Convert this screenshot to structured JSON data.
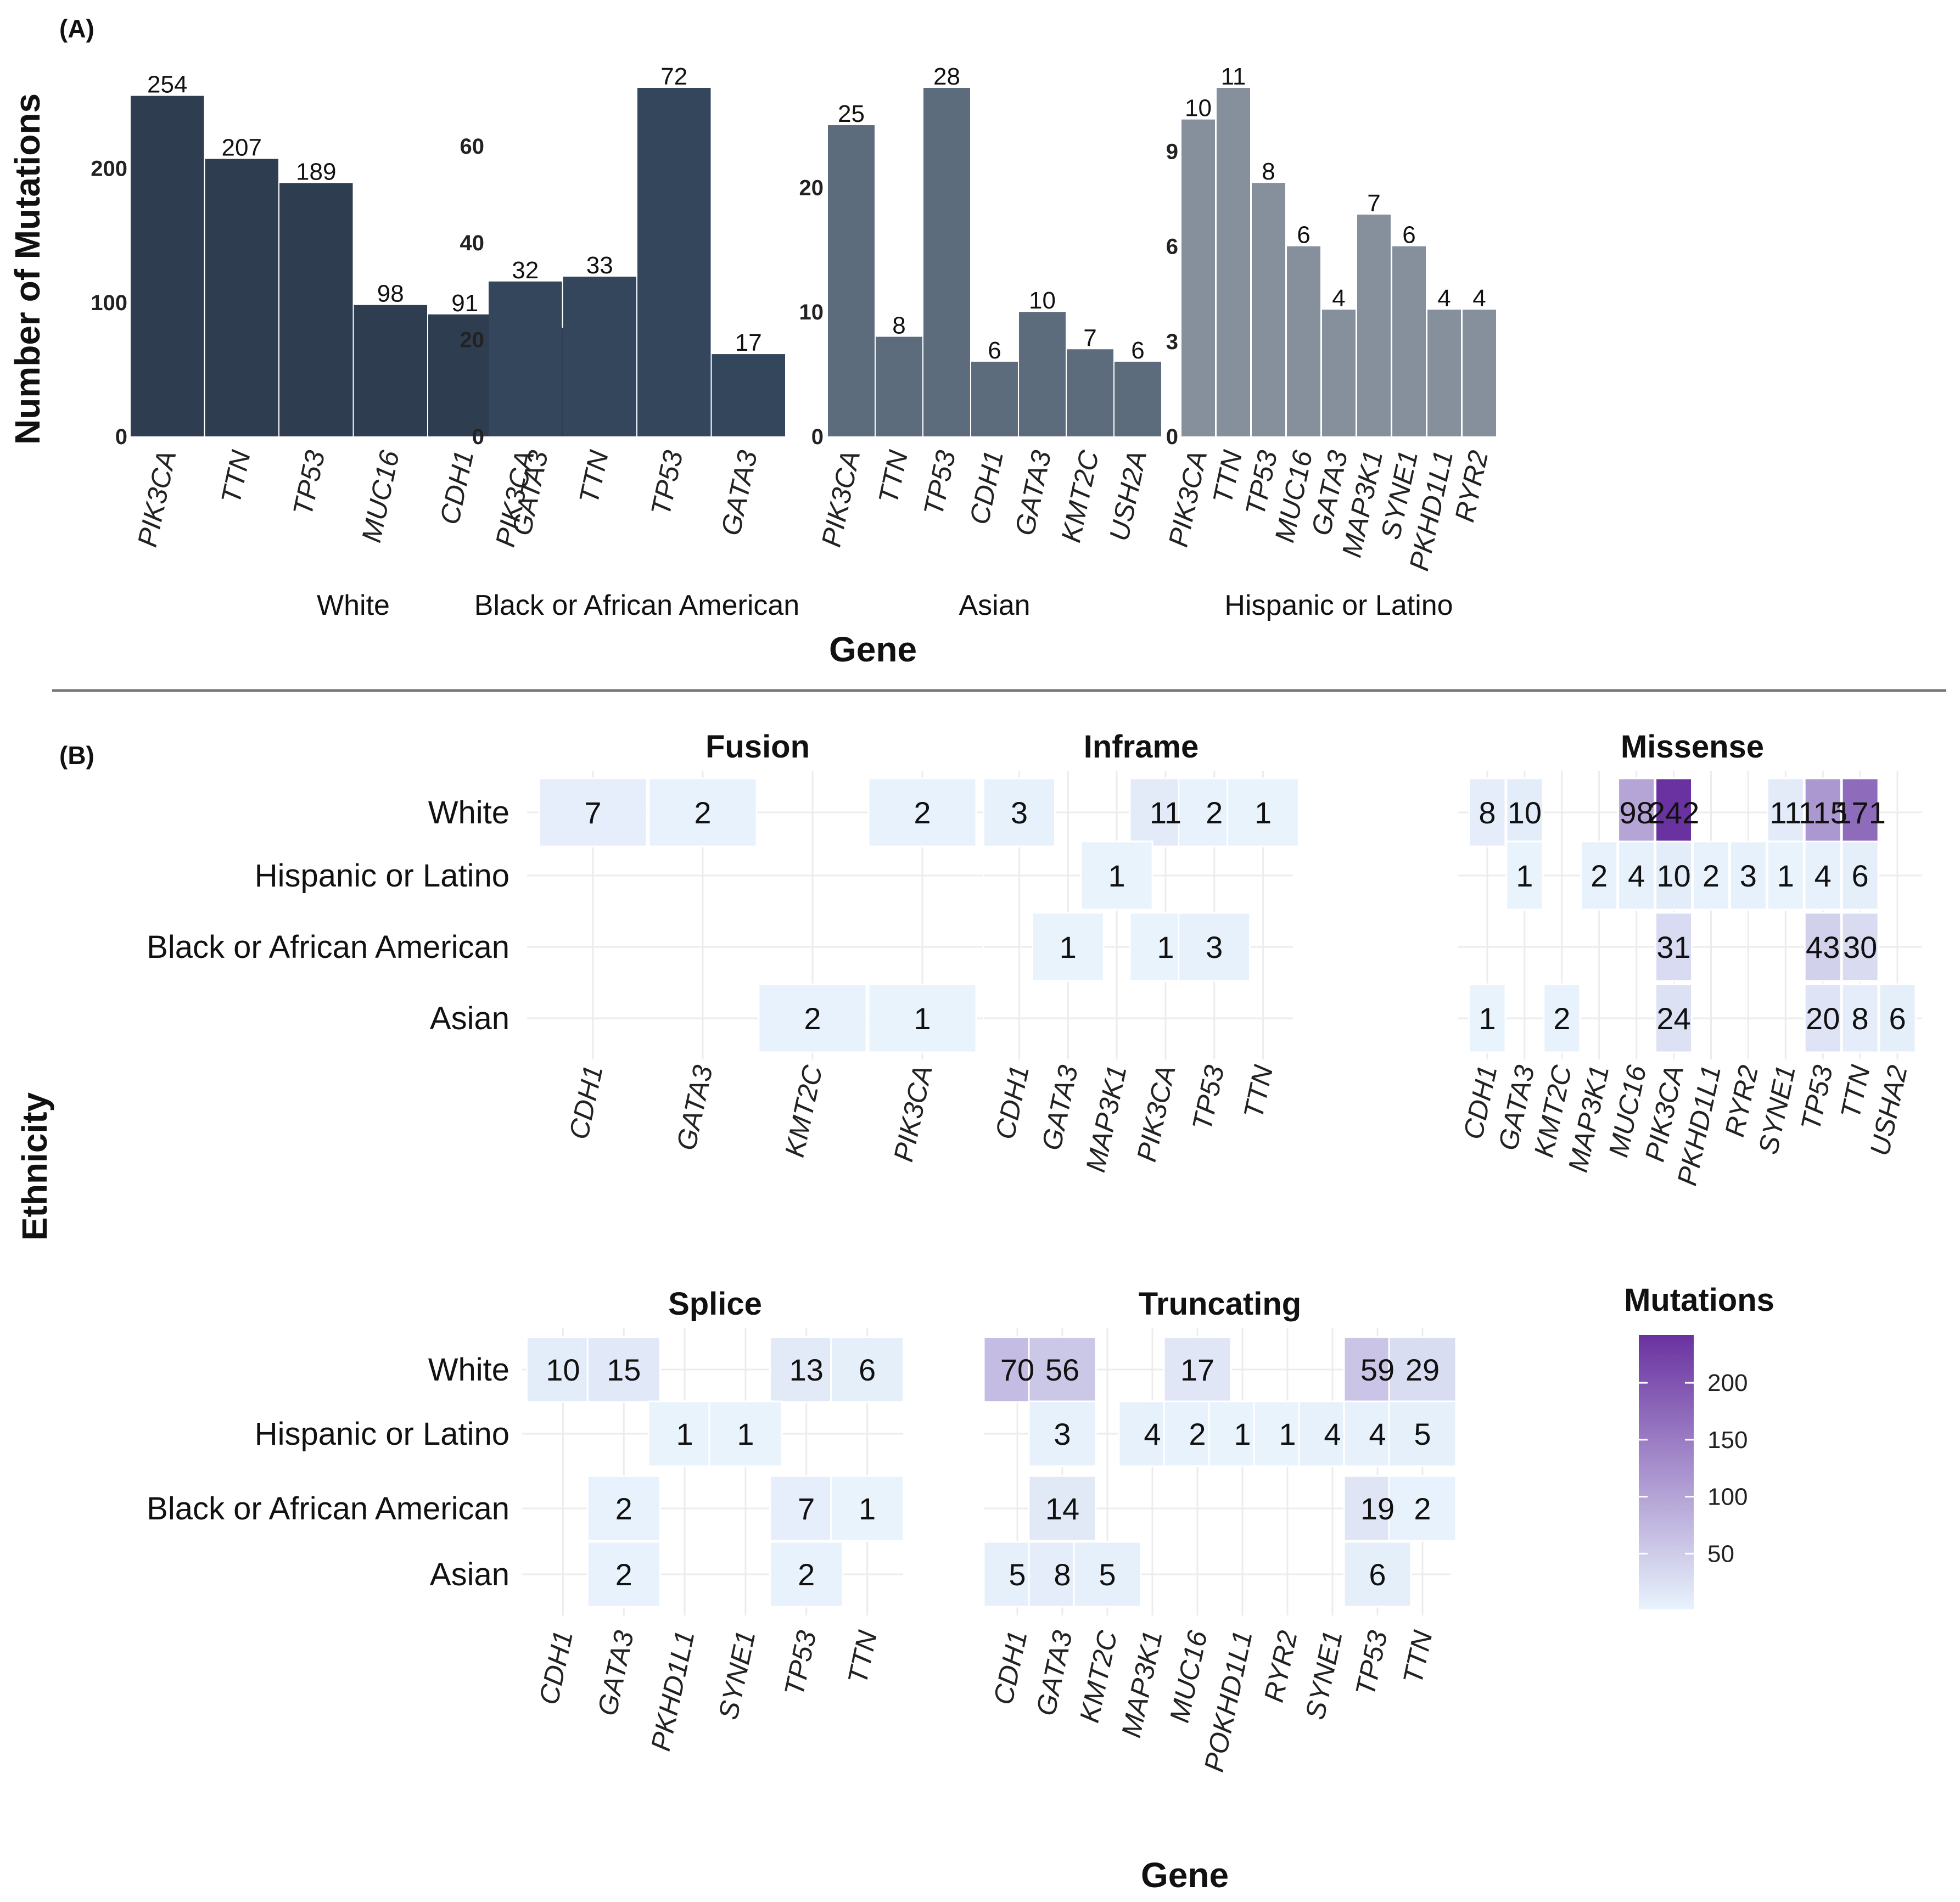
{
  "panel_a_label": "(A)",
  "panel_b_label": "(B)",
  "chart_data": [
    {
      "type": "bar",
      "title": "",
      "ylabel": "Number of Mutations",
      "xlabel": "Gene",
      "facets": [
        {
          "group": "White",
          "categories": [
            "PIK3CA",
            "TTN",
            "TP53",
            "MUC16",
            "CDH1",
            "GATA3"
          ],
          "values": [
            254,
            207,
            189,
            98,
            91,
            81
          ],
          "ylim": [
            0,
            260
          ],
          "yticks": [
            0,
            100,
            200
          ],
          "color": "#2e3d50"
        },
        {
          "group": "Black or African American",
          "categories": [
            "PIK3CA",
            "TTN",
            "TP53",
            "GATA3"
          ],
          "values": [
            32,
            33,
            72,
            17
          ],
          "ylim": [
            0,
            72
          ],
          "yticks": [
            0,
            20,
            40,
            60
          ],
          "color": "#34465c"
        },
        {
          "group": "Asian",
          "categories": [
            "PIK3CA",
            "TTN",
            "TP53",
            "CDH1",
            "GATA3",
            "KMT2C",
            "USH2A"
          ],
          "values": [
            25,
            8,
            28,
            6,
            10,
            7,
            6
          ],
          "ylim": [
            0,
            28
          ],
          "yticks": [
            0,
            10,
            20
          ],
          "color": "#5d6c7c"
        },
        {
          "group": "Hispanic or Latino",
          "categories": [
            "PIK3CA",
            "TTN",
            "TP53",
            "MUC16",
            "GATA3",
            "MAP3K1",
            "SYNE1",
            "PKHD1L1",
            "RYR2"
          ],
          "values": [
            10,
            11,
            8,
            6,
            4,
            7,
            6,
            4,
            4
          ],
          "ylim": [
            0,
            11
          ],
          "yticks": [
            0,
            3,
            6,
            9
          ],
          "color": "#85909c"
        }
      ]
    },
    {
      "type": "heatmap",
      "xlabel": "Gene",
      "ylabel": "Ethnicity",
      "rows": [
        "White",
        "Hispanic or Latino",
        "Black or African American",
        "Asian"
      ],
      "legend": {
        "title": "Mutations",
        "min": 1,
        "max": 242,
        "ticks": [
          50,
          100,
          150,
          200
        ],
        "low_color": "#e8f3fc",
        "high_color": "#6a32a0"
      },
      "facets": [
        {
          "title": "Fusion",
          "genes": [
            "CDH1",
            "GATA3",
            "KMT2C",
            "PIK3CA"
          ],
          "cells": [
            {
              "row": "White",
              "gene": "CDH1",
              "value": 7
            },
            {
              "row": "White",
              "gene": "GATA3",
              "value": 2
            },
            {
              "row": "White",
              "gene": "PIK3CA",
              "value": 2
            },
            {
              "row": "Asian",
              "gene": "KMT2C",
              "value": 2
            },
            {
              "row": "Asian",
              "gene": "PIK3CA",
              "value": 1
            }
          ]
        },
        {
          "title": "Inframe",
          "genes": [
            "CDH1",
            "GATA3",
            "MAP3K1",
            "PIK3CA",
            "TP53",
            "TTN"
          ],
          "cells": [
            {
              "row": "White",
              "gene": "CDH1",
              "value": 3
            },
            {
              "row": "White",
              "gene": "PIK3CA",
              "value": 11
            },
            {
              "row": "White",
              "gene": "TP53",
              "value": 2
            },
            {
              "row": "White",
              "gene": "TTN",
              "value": 1
            },
            {
              "row": "Hispanic or Latino",
              "gene": "MAP3K1",
              "value": 1
            },
            {
              "row": "Black or African American",
              "gene": "GATA3",
              "value": 1
            },
            {
              "row": "Black or African American",
              "gene": "PIK3CA",
              "value": 1
            },
            {
              "row": "Black or African American",
              "gene": "TP53",
              "value": 3
            }
          ]
        },
        {
          "title": "Missense",
          "genes": [
            "CDH1",
            "GATA3",
            "KMT2C",
            "MAP3K1",
            "MUC16",
            "PIK3CA",
            "PKHD1L1",
            "RYR2",
            "SYNE1",
            "TP53",
            "TTN",
            "USHA2"
          ],
          "cells": [
            {
              "row": "White",
              "gene": "CDH1",
              "value": 8
            },
            {
              "row": "White",
              "gene": "GATA3",
              "value": 10
            },
            {
              "row": "White",
              "gene": "MUC16",
              "value": 98
            },
            {
              "row": "White",
              "gene": "PIK3CA",
              "value": 242
            },
            {
              "row": "White",
              "gene": "SYNE1",
              "value": 11
            },
            {
              "row": "White",
              "gene": "TP53",
              "value": 115
            },
            {
              "row": "White",
              "gene": "TTN",
              "value": 171
            },
            {
              "row": "Hispanic or Latino",
              "gene": "GATA3",
              "value": 1
            },
            {
              "row": "Hispanic or Latino",
              "gene": "MAP3K1",
              "value": 2
            },
            {
              "row": "Hispanic or Latino",
              "gene": "MUC16",
              "value": 4
            },
            {
              "row": "Hispanic or Latino",
              "gene": "PIK3CA",
              "value": 10
            },
            {
              "row": "Hispanic or Latino",
              "gene": "PKHD1L1",
              "value": 2
            },
            {
              "row": "Hispanic or Latino",
              "gene": "RYR2",
              "value": 3
            },
            {
              "row": "Hispanic or Latino",
              "gene": "SYNE1",
              "value": 1
            },
            {
              "row": "Hispanic or Latino",
              "gene": "TP53",
              "value": 4
            },
            {
              "row": "Hispanic or Latino",
              "gene": "TTN",
              "value": 6
            },
            {
              "row": "Black or African American",
              "gene": "PIK3CA",
              "value": 31
            },
            {
              "row": "Black or African American",
              "gene": "TP53",
              "value": 43
            },
            {
              "row": "Black or African American",
              "gene": "TTN",
              "value": 30
            },
            {
              "row": "Asian",
              "gene": "CDH1",
              "value": 1
            },
            {
              "row": "Asian",
              "gene": "KMT2C",
              "value": 2
            },
            {
              "row": "Asian",
              "gene": "PIK3CA",
              "value": 24
            },
            {
              "row": "Asian",
              "gene": "TP53",
              "value": 20
            },
            {
              "row": "Asian",
              "gene": "TTN",
              "value": 8
            },
            {
              "row": "Asian",
              "gene": "USHA2",
              "value": 6
            }
          ]
        },
        {
          "title": "Splice",
          "genes": [
            "CDH1",
            "GATA3",
            "PKHD1L1",
            "SYNE1",
            "TP53",
            "TTN"
          ],
          "cells": [
            {
              "row": "White",
              "gene": "CDH1",
              "value": 10
            },
            {
              "row": "White",
              "gene": "GATA3",
              "value": 15
            },
            {
              "row": "White",
              "gene": "TP53",
              "value": 13
            },
            {
              "row": "White",
              "gene": "TTN",
              "value": 6
            },
            {
              "row": "Hispanic or Latino",
              "gene": "PKHD1L1",
              "value": 1
            },
            {
              "row": "Hispanic or Latino",
              "gene": "SYNE1",
              "value": 1
            },
            {
              "row": "Black or African American",
              "gene": "GATA3",
              "value": 2
            },
            {
              "row": "Black or African American",
              "gene": "TP53",
              "value": 7
            },
            {
              "row": "Black or African American",
              "gene": "TTN",
              "value": 1
            },
            {
              "row": "Asian",
              "gene": "GATA3",
              "value": 2
            },
            {
              "row": "Asian",
              "gene": "TP53",
              "value": 2
            }
          ]
        },
        {
          "title": "Truncating",
          "genes": [
            "CDH1",
            "GATA3",
            "KMT2C",
            "MAP3K1",
            "MUC16",
            "POKHD1L1",
            "RYR2",
            "SYNE1",
            "TP53",
            "TTN"
          ],
          "cells": [
            {
              "row": "White",
              "gene": "CDH1",
              "value": 70
            },
            {
              "row": "White",
              "gene": "GATA3",
              "value": 56
            },
            {
              "row": "White",
              "gene": "MUC16",
              "value": 17
            },
            {
              "row": "White",
              "gene": "TP53",
              "value": 59
            },
            {
              "row": "White",
              "gene": "TTN",
              "value": 29
            },
            {
              "row": "Hispanic or Latino",
              "gene": "GATA3",
              "value": 3
            },
            {
              "row": "Hispanic or Latino",
              "gene": "MAP3K1",
              "value": 4
            },
            {
              "row": "Hispanic or Latino",
              "gene": "MUC16",
              "value": 2
            },
            {
              "row": "Hispanic or Latino",
              "gene": "POKHD1L1",
              "value": 1
            },
            {
              "row": "Hispanic or Latino",
              "gene": "RYR2",
              "value": 1
            },
            {
              "row": "Hispanic or Latino",
              "gene": "SYNE1",
              "value": 4
            },
            {
              "row": "Hispanic or Latino",
              "gene": "TP53",
              "value": 4
            },
            {
              "row": "Hispanic or Latino",
              "gene": "TTN",
              "value": 5
            },
            {
              "row": "Black or African American",
              "gene": "GATA3",
              "value": 14
            },
            {
              "row": "Black or African American",
              "gene": "TP53",
              "value": 19
            },
            {
              "row": "Black or African American",
              "gene": "TTN",
              "value": 2
            },
            {
              "row": "Asian",
              "gene": "CDH1",
              "value": 5
            },
            {
              "row": "Asian",
              "gene": "GATA3",
              "value": 8
            },
            {
              "row": "Asian",
              "gene": "KMT2C",
              "value": 5
            },
            {
              "row": "Asian",
              "gene": "TP53",
              "value": 6
            }
          ]
        }
      ]
    }
  ]
}
